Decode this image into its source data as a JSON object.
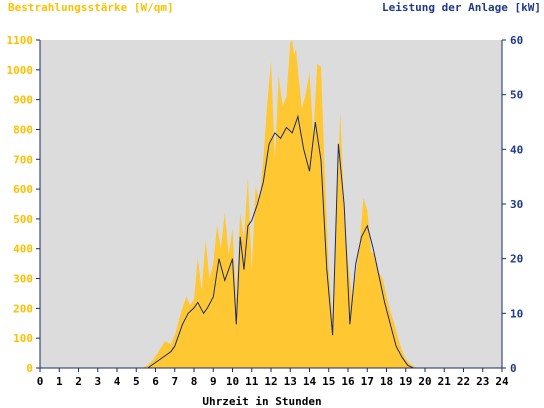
{
  "chart_data": {
    "type": "area",
    "left_axis_title": "Bestrahlungsstärke [W/qm]",
    "right_axis_title": "Leistung der Anlage [kW]",
    "xlabel": "Uhrzeit in Stunden",
    "xlim": [
      0,
      24
    ],
    "x_ticks": [
      "0",
      "1",
      "2",
      "3",
      "4",
      "5",
      "6",
      "7",
      "8",
      "9",
      "10",
      "11",
      "12",
      "13",
      "14",
      "15",
      "16",
      "17",
      "18",
      "19",
      "20",
      "21",
      "22",
      "23",
      "24"
    ],
    "left_ylim": [
      0,
      1100
    ],
    "left_ticks": [
      "0",
      "100",
      "200",
      "300",
      "400",
      "500",
      "600",
      "700",
      "800",
      "900",
      "1000",
      "1100"
    ],
    "right_ylim": [
      0,
      60
    ],
    "right_ticks": [
      "0",
      "10",
      "20",
      "30",
      "40",
      "50",
      "60"
    ],
    "colors": {
      "irradiance": "#ffc832",
      "power": "#1a2a6c",
      "plot_background": "#dcdcdc",
      "left_axis_text": "#ffc000",
      "right_axis_text": "#1f3a8a",
      "axis": "#1a2a6c"
    },
    "series": [
      {
        "axis": "left",
        "type": "area",
        "x": [
          0,
          5.3,
          5.6,
          5.9,
          6.2,
          6.5,
          6.8,
          7.0,
          7.3,
          7.6,
          7.8,
          8.0,
          8.2,
          8.4,
          8.6,
          8.8,
          9.0,
          9.2,
          9.4,
          9.6,
          9.8,
          10.0,
          10.2,
          10.4,
          10.6,
          10.8,
          11.0,
          11.2,
          11.4,
          11.6,
          11.8,
          12.0,
          12.2,
          12.4,
          12.6,
          12.8,
          13.0,
          13.1,
          13.2,
          13.3,
          13.4,
          13.6,
          13.8,
          14.0,
          14.2,
          14.4,
          14.6,
          14.8,
          15.0,
          15.2,
          15.4,
          15.6,
          15.8,
          16.0,
          16.2,
          16.4,
          16.6,
          16.8,
          17.0,
          17.2,
          17.4,
          17.6,
          17.8,
          18.0,
          18.2,
          18.4,
          18.6,
          18.8,
          19.0,
          19.3,
          19.6,
          19.9,
          20.2,
          24
        ],
        "values": [
          0,
          0,
          10,
          30,
          60,
          90,
          80,
          110,
          180,
          240,
          210,
          230,
          370,
          260,
          430,
          300,
          350,
          480,
          400,
          520,
          380,
          470,
          230,
          520,
          430,
          640,
          330,
          610,
          560,
          700,
          880,
          1030,
          700,
          980,
          880,
          910,
          1090,
          1100,
          1050,
          1070,
          1000,
          870,
          920,
          990,
          780,
          1020,
          1010,
          640,
          330,
          160,
          520,
          860,
          530,
          360,
          240,
          310,
          410,
          570,
          530,
          390,
          380,
          320,
          300,
          240,
          190,
          150,
          100,
          60,
          30,
          10,
          0,
          0,
          0,
          0
        ]
      },
      {
        "axis": "right",
        "type": "line",
        "x": [
          0,
          5.6,
          6.0,
          6.4,
          6.8,
          7.0,
          7.4,
          7.7,
          8.0,
          8.2,
          8.5,
          8.7,
          9.0,
          9.3,
          9.6,
          9.8,
          10.0,
          10.2,
          10.4,
          10.6,
          10.8,
          11.0,
          11.3,
          11.6,
          11.9,
          12.2,
          12.5,
          12.8,
          13.1,
          13.4,
          13.7,
          14.0,
          14.3,
          14.6,
          14.9,
          15.2,
          15.5,
          15.8,
          16.1,
          16.4,
          16.7,
          17.0,
          17.3,
          17.6,
          17.9,
          18.2,
          18.5,
          18.8,
          19.1,
          19.4,
          19.7,
          20.0,
          24
        ],
        "values": [
          0,
          0,
          1,
          2,
          3,
          4,
          8,
          10,
          11,
          12,
          10,
          11,
          13,
          20,
          16,
          18,
          20,
          8,
          24,
          18,
          26,
          27,
          30,
          34,
          41,
          43,
          42,
          44,
          43,
          46,
          40,
          36,
          45,
          38,
          18,
          6,
          41,
          30,
          8,
          19,
          24,
          26,
          22,
          17,
          12,
          8,
          4,
          2,
          0.5,
          0,
          0,
          0,
          0
        ]
      }
    ]
  }
}
